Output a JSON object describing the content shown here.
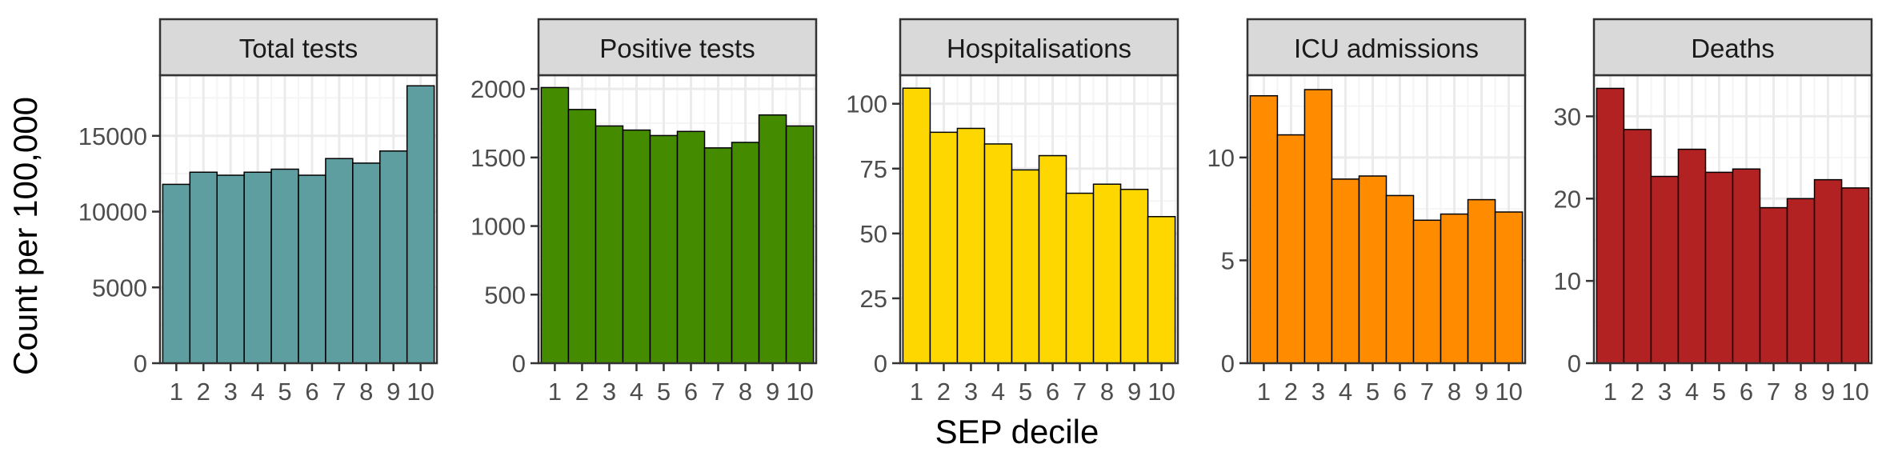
{
  "figure": {
    "ylabel": "Count per 100,000",
    "xlabel": "SEP decile"
  },
  "colors": {
    "panel_border": "#333333",
    "strip_fill": "#d9d9d9",
    "grid_major": "#ebebeb",
    "grid_minor": "#f5f5f5",
    "bar_outline": "#000000"
  },
  "chart_data": [
    {
      "type": "bar",
      "title": "Total tests",
      "color": "#5f9ea0",
      "categories": [
        "1",
        "2",
        "3",
        "4",
        "5",
        "6",
        "7",
        "8",
        "9",
        "10"
      ],
      "values": [
        11800,
        12600,
        12400,
        12600,
        12800,
        12400,
        13500,
        13200,
        14000,
        18300
      ],
      "ylim": [
        0,
        19000
      ],
      "yticks": [
        0,
        5000,
        10000,
        15000
      ],
      "ytick_labels": [
        "0",
        "5000",
        "10000",
        "15000"
      ]
    },
    {
      "type": "bar",
      "title": "Positive tests",
      "color": "#458b00",
      "categories": [
        "1",
        "2",
        "3",
        "4",
        "5",
        "6",
        "7",
        "8",
        "9",
        "10"
      ],
      "values": [
        2010,
        1850,
        1730,
        1700,
        1660,
        1690,
        1570,
        1610,
        1810,
        1730
      ],
      "ylim": [
        0,
        2100
      ],
      "yticks": [
        0,
        500,
        1000,
        1500,
        2000
      ],
      "ytick_labels": [
        "0",
        "500",
        "1000",
        "1500",
        "2000"
      ]
    },
    {
      "type": "bar",
      "title": "Hospitalisations",
      "color": "#ffd700",
      "categories": [
        "1",
        "2",
        "3",
        "4",
        "5",
        "6",
        "7",
        "8",
        "9",
        "10"
      ],
      "values": [
        106,
        89,
        90.5,
        84.5,
        74.5,
        80,
        65.5,
        69,
        67,
        56.5
      ],
      "ylim": [
        0,
        111
      ],
      "yticks": [
        0,
        25,
        50,
        75,
        100
      ],
      "ytick_labels": [
        "0",
        "25",
        "50",
        "75",
        "100"
      ]
    },
    {
      "type": "bar",
      "title": "ICU admissions",
      "color": "#ff8c00",
      "categories": [
        "1",
        "2",
        "3",
        "4",
        "5",
        "6",
        "7",
        "8",
        "9",
        "10"
      ],
      "values": [
        13.0,
        11.1,
        13.3,
        8.95,
        9.1,
        8.15,
        6.95,
        7.25,
        7.95,
        7.35
      ],
      "ylim": [
        0,
        14
      ],
      "yticks": [
        0,
        5,
        10
      ],
      "ytick_labels": [
        "0",
        "5",
        "10"
      ]
    },
    {
      "type": "bar",
      "title": "Deaths",
      "color": "#b22222",
      "categories": [
        "1",
        "2",
        "3",
        "4",
        "5",
        "6",
        "7",
        "8",
        "9",
        "10"
      ],
      "values": [
        33.4,
        28.4,
        22.7,
        26.0,
        23.2,
        23.6,
        18.9,
        20.0,
        22.3,
        21.3
      ],
      "ylim": [
        0,
        35
      ],
      "yticks": [
        0,
        10,
        20,
        30
      ],
      "ytick_labels": [
        "0",
        "10",
        "20",
        "30"
      ]
    }
  ]
}
